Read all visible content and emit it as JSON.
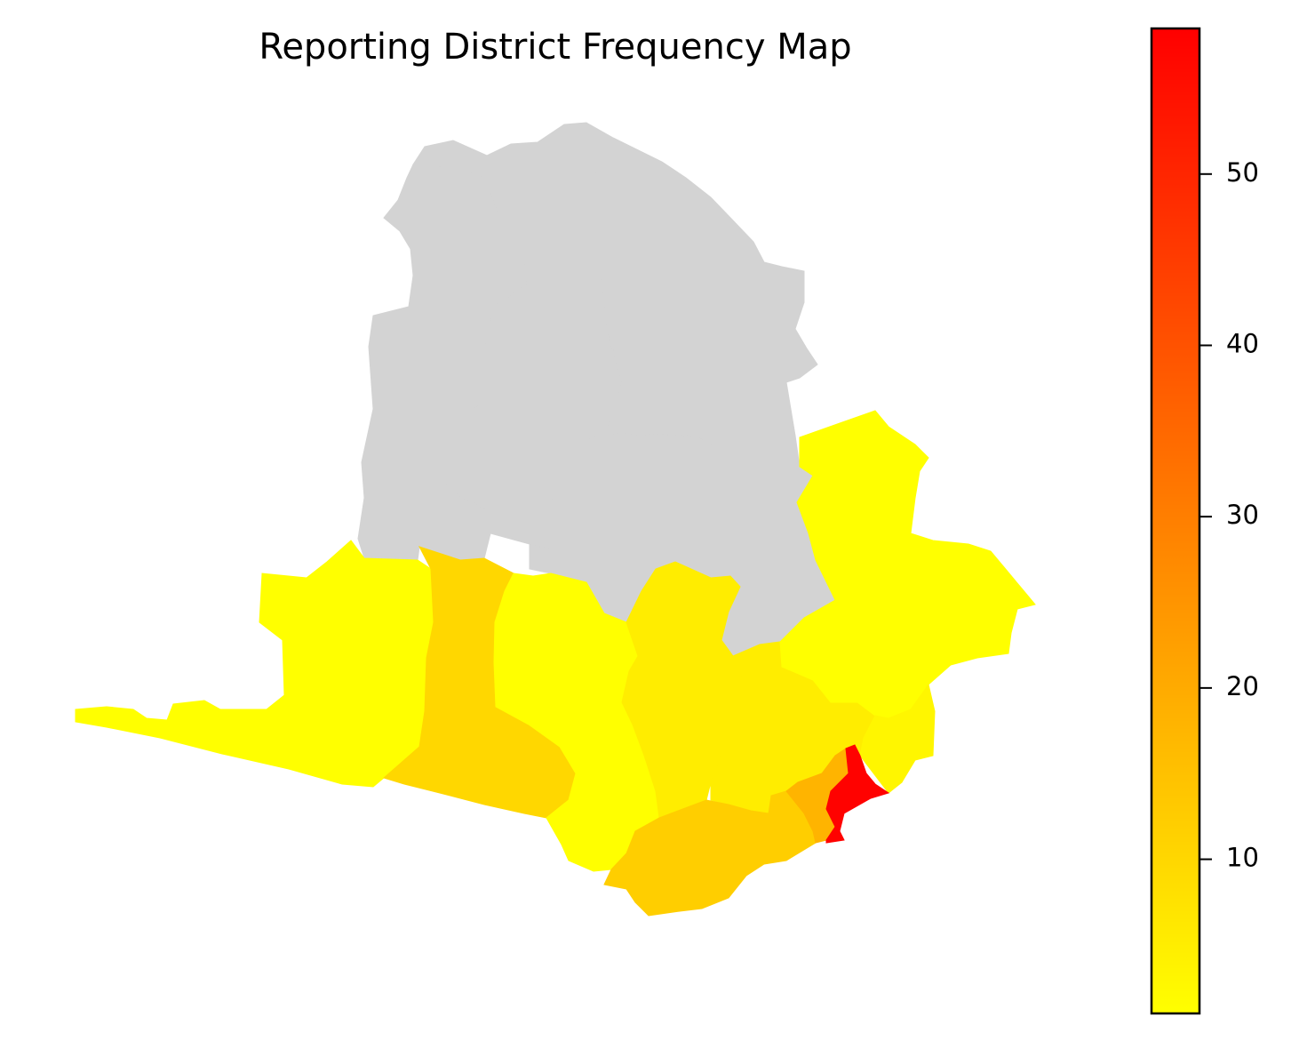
{
  "title": "Reporting District Frequency Map",
  "colorbar": {
    "min": 1,
    "max": 58.5,
    "color_low": "#ffff00",
    "color_high": "#ff0000",
    "ticks": [
      {
        "value": 10,
        "label": "10"
      },
      {
        "value": 20,
        "label": "20"
      },
      {
        "value": 30,
        "label": "30"
      },
      {
        "value": 40,
        "label": "40"
      },
      {
        "value": 50,
        "label": "50"
      }
    ]
  },
  "map": {
    "no_data_color": "#d3d3d3",
    "districts": [
      {
        "id": "north-a",
        "value": null
      },
      {
        "id": "north-b",
        "value": null
      },
      {
        "id": "north-c",
        "value": null
      },
      {
        "id": "north-d",
        "value": null
      },
      {
        "id": "west-coast",
        "value": 1
      },
      {
        "id": "west-central",
        "value": 10
      },
      {
        "id": "central-west",
        "value": 1
      },
      {
        "id": "central",
        "value": 5
      },
      {
        "id": "central-east",
        "value": 5
      },
      {
        "id": "east",
        "value": 1
      },
      {
        "id": "south-east",
        "value": 3
      },
      {
        "id": "south-coast",
        "value": 12
      },
      {
        "id": "harbour-west",
        "value": 18
      },
      {
        "id": "harbour",
        "value": 58
      }
    ]
  }
}
